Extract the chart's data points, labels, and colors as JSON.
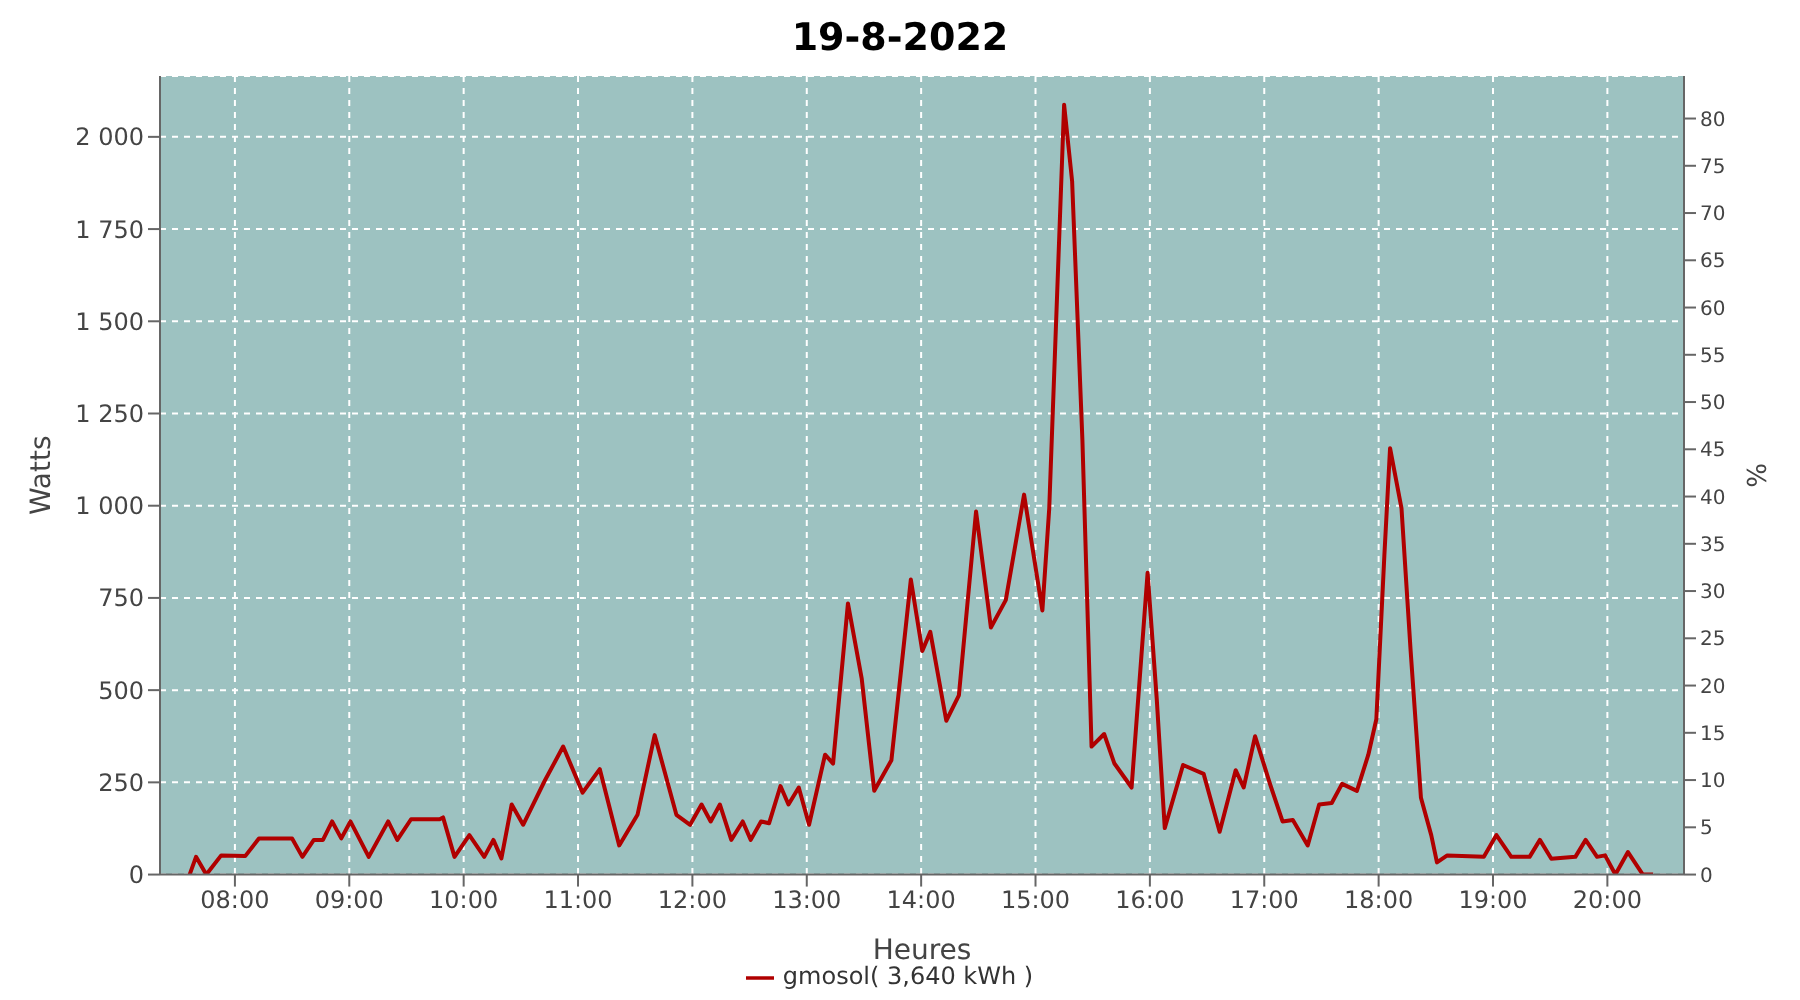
{
  "chart_data": {
    "type": "line",
    "title": "19-8-2022",
    "xlabel": "Heures",
    "ylabel": "Watts",
    "y2label": "%",
    "x": [
      7.604,
      7.66,
      7.75,
      7.88,
      8.09,
      8.21,
      8.5,
      8.59,
      8.69,
      8.77,
      8.85,
      8.93,
      9.01,
      9.17,
      9.34,
      9.42,
      9.54,
      9.79,
      9.82,
      9.92,
      10.05,
      10.18,
      10.26,
      10.33,
      10.42,
      10.52,
      10.71,
      10.87,
      11.04,
      11.19,
      11.36,
      11.52,
      11.67,
      11.86,
      11.98,
      12.08,
      12.16,
      12.24,
      12.34,
      12.44,
      12.51,
      12.6,
      12.67,
      12.77,
      12.84,
      12.93,
      13.02,
      13.16,
      13.23,
      13.36,
      13.48,
      13.59,
      13.74,
      13.91,
      14.01,
      14.08,
      14.22,
      14.33,
      14.48,
      14.61,
      14.74,
      14.9,
      15.06,
      15.12,
      15.25,
      15.32,
      15.41,
      15.49,
      15.6,
      15.69,
      15.84,
      15.98,
      16.06,
      16.13,
      16.29,
      16.47,
      16.61,
      16.75,
      16.82,
      16.92,
      17.05,
      17.16,
      17.25,
      17.38,
      17.48,
      17.59,
      17.68,
      17.81,
      17.91,
      17.98,
      18.05,
      18.1,
      18.2,
      18.28,
      18.37,
      18.46,
      18.51,
      18.6,
      18.92,
      19.03,
      19.16,
      19.32,
      19.41,
      19.51,
      19.72,
      19.81,
      19.91,
      19.98,
      20.07,
      20.18,
      20.31,
      20.4
    ],
    "series": [
      {
        "name": "gmosol( 3,640 kWh )",
        "color": "#b00000",
        "values": [
          0,
          48,
          0,
          52,
          50,
          98,
          98,
          48,
          94,
          94,
          144,
          98,
          144,
          48,
          144,
          94,
          150,
          150,
          155,
          48,
          107,
          48,
          94,
          44,
          190,
          135,
          255,
          347,
          222,
          286,
          79,
          162,
          378,
          162,
          135,
          190,
          144,
          190,
          94,
          144,
          94,
          144,
          139,
          240,
          190,
          236,
          135,
          325,
          301,
          735,
          532,
          227,
          310,
          800,
          606,
          658,
          417,
          486,
          984,
          670,
          744,
          1030,
          716,
          993,
          2087,
          1880,
          1178,
          347,
          381,
          301,
          236,
          818,
          476,
          126,
          297,
          273,
          116,
          283,
          236,
          375,
          246,
          144,
          148,
          79,
          190,
          194,
          246,
          227,
          325,
          421,
          864,
          1156,
          993,
          606,
          208,
          107,
          33,
          52,
          48,
          107,
          48,
          48,
          94,
          43,
          48,
          94,
          48,
          52,
          0,
          61,
          0,
          0
        ]
      }
    ],
    "xlim": [
      7.345,
      20.67
    ],
    "xticks": [
      {
        "value": 8,
        "label": "08:00"
      },
      {
        "value": 9,
        "label": "09:00"
      },
      {
        "value": 10,
        "label": "10:00"
      },
      {
        "value": 11,
        "label": "11:00"
      },
      {
        "value": 12,
        "label": "12:00"
      },
      {
        "value": 13,
        "label": "13:00"
      },
      {
        "value": 14,
        "label": "14:00"
      },
      {
        "value": 15,
        "label": "15:00"
      },
      {
        "value": 16,
        "label": "16:00"
      },
      {
        "value": 17,
        "label": "17:00"
      },
      {
        "value": 18,
        "label": "18:00"
      },
      {
        "value": 19,
        "label": "19:00"
      },
      {
        "value": 20,
        "label": "20:00"
      }
    ],
    "ylim": [
      0,
      2165
    ],
    "yticks": [
      0,
      250,
      500,
      750,
      {
        "value": 1000,
        "label": "1 000"
      },
      {
        "value": 1250,
        "label": "1 250"
      },
      {
        "value": 1500,
        "label": "1 500"
      },
      {
        "value": 1750,
        "label": "1 750"
      },
      {
        "value": 2000,
        "label": "2 000"
      }
    ],
    "y2lim": [
      0,
      84.5
    ],
    "y2ticks": [
      0,
      5,
      10,
      15,
      20,
      25,
      30,
      35,
      40,
      45,
      50,
      55,
      60,
      65,
      70,
      75,
      80
    ],
    "grid": true,
    "legend": "bottom",
    "marker": "none",
    "line_style": "solid"
  }
}
